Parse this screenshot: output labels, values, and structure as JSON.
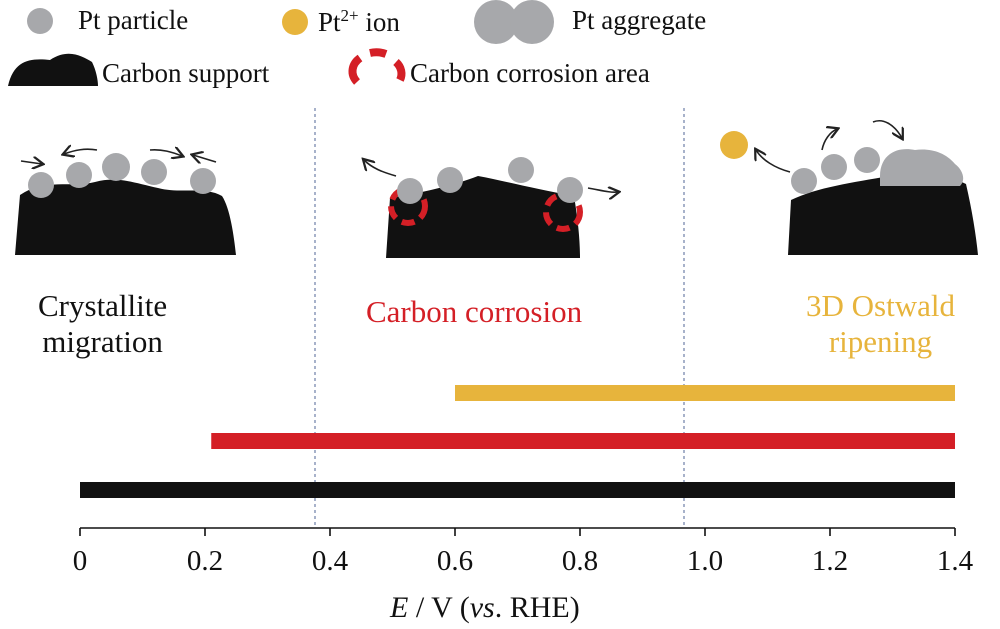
{
  "legend": {
    "pt_particle": "Pt particle",
    "pt_ion_base": "Pt",
    "pt_ion_sup": "2+",
    "pt_ion_rest": " ion",
    "pt_aggregate": "Pt aggregate",
    "carbon_support": "Carbon support",
    "carbon_corrosion_area": "Carbon corrosion area"
  },
  "mechanisms": {
    "crystallite_line1": "Crystallite",
    "crystallite_line2": "migration",
    "corrosion": "Carbon corrosion",
    "ostwald_line1": "3D Ostwald",
    "ostwald_line2": "ripening"
  },
  "axis": {
    "label_var": "E",
    "label_rest": " / V (",
    "label_vs": "vs",
    "label_end": ". RHE)",
    "ticks": [
      "0",
      "0.2",
      "0.4",
      "0.6",
      "0.8",
      "1.0",
      "1.2",
      "1.4"
    ]
  },
  "colors": {
    "particle": "#a7a8ab",
    "ion": "#e7b43c",
    "carbon": "#111111",
    "corrosion": "#d41f26",
    "ostwald": "#e7b43c"
  },
  "chart_data": {
    "type": "bar",
    "orientation": "horizontal",
    "xlim": [
      0,
      1.4
    ],
    "series": [
      {
        "name": "3D Ostwald ripening",
        "start": 0.6,
        "end": 1.4,
        "color": "#e7b43c"
      },
      {
        "name": "Carbon corrosion",
        "start": 0.21,
        "end": 1.4,
        "color": "#d41f26"
      },
      {
        "name": "Crystallite migration",
        "start": 0.0,
        "end": 1.4,
        "color": "#111111"
      }
    ],
    "dividers": [
      0.38,
      0.97
    ]
  }
}
